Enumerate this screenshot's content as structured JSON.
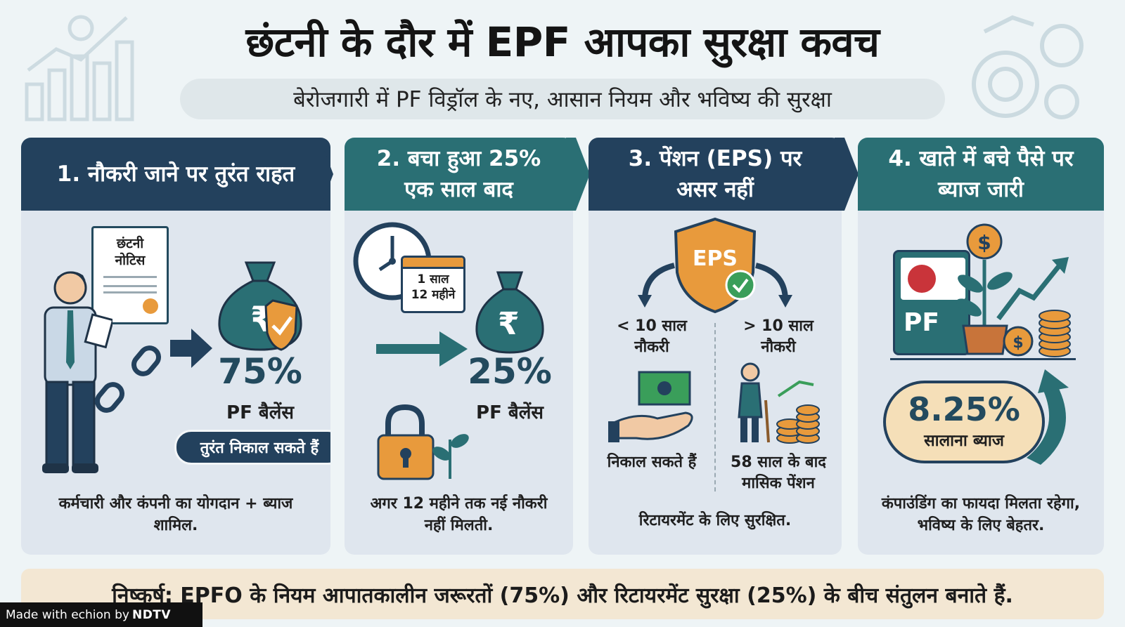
{
  "header": {
    "title": "छंटनी के दौर में EPF आपका सुरक्षा कवच",
    "subtitle": "बेरोजगारी में PF विड्रॉल के नए, आसान नियम और भविष्य की सुरक्षा"
  },
  "panels": [
    {
      "title": "1. नौकरी जाने पर तुरंत राहत",
      "notice_line1": "छंटनी",
      "notice_line2": "नोटिस",
      "percent": "75%",
      "balance_label": "PF बैलेंस",
      "pill": "तुरंत निकाल सकते हैं",
      "footer": "कर्मचारी और कंपनी का योगदान + ब्याज शामिल."
    },
    {
      "title": "2. बचा हुआ 25% एक साल बाद",
      "calendar_line1": "1 साल",
      "calendar_line2": "12 महीने",
      "percent": "25%",
      "balance_label": "PF बैलेंस",
      "footer": "अगर 12 महीने तक नई नौकरी नहीं मिलती."
    },
    {
      "title": "3. पेंशन (EPS) पर असर नहीं",
      "shield_label": "EPS",
      "left_condition": "< 10 साल नौकरी",
      "right_condition": "> 10 साल नौकरी",
      "left_outcome": "निकाल सकते हैं",
      "right_outcome": "58 साल के बाद मासिक पेंशन",
      "footer": "रिटायरमेंट के लिए सुरक्षित."
    },
    {
      "title": "4. खाते में बचे पैसे पर ब्याज जारी",
      "pf_card": "PF",
      "rate": "8.25%",
      "rate_label": "सालाना ब्याज",
      "footer": "कंपाउंडिंग का फायदा मिलता रहेगा, भविष्य के लिए बेहतर."
    }
  ],
  "conclusion": "निष्कर्ष: EPFO के नियम आपातकालीन जरूरतों (75%) और रिटायरमेंट सुरक्षा (25%) के बीच संतुलन बनाते हैं.",
  "watermark": {
    "prefix": "Made with",
    "brand": "echion",
    "by": "by",
    "owner": "NDTV"
  },
  "colors": {
    "navy": "#23415d",
    "teal": "#2a6f74",
    "orange": "#e89a3c",
    "panel_bg": "#dfe6ee",
    "conclusion_bg": "#f3e7d3"
  }
}
